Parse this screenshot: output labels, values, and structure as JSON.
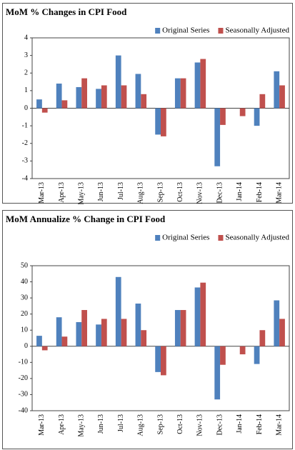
{
  "chart_data": [
    {
      "type": "bar",
      "title": "MoM % Changes in CPI Food",
      "categories": [
        "Mar-13",
        "Apr-13",
        "May-13",
        "Jun-13",
        "Jul-13",
        "Aug-13",
        "Sep-13",
        "Oct-13",
        "Nov-13",
        "Dec-13",
        "Jan-14",
        "Feb-14",
        "Mar-14"
      ],
      "series": [
        {
          "name": "Original Series",
          "color": "#4f81bd",
          "values": [
            0.5,
            1.4,
            1.2,
            1.1,
            3.0,
            1.95,
            -1.5,
            1.7,
            2.6,
            -3.3,
            0,
            -1.0,
            2.1
          ]
        },
        {
          "name": "Seasonally Adjusted",
          "color": "#c0504d",
          "values": [
            -0.25,
            0.45,
            1.7,
            1.3,
            1.3,
            0.8,
            -1.6,
            1.7,
            2.8,
            -0.95,
            -0.45,
            0.8,
            1.3
          ]
        }
      ],
      "ylim": [
        -4,
        4
      ],
      "yticks": [
        -4,
        -3,
        -2,
        -1,
        0,
        1,
        2,
        3,
        4
      ],
      "legend": "top-right"
    },
    {
      "type": "bar",
      "title": "MoM Annualize % Change in CPI Food",
      "categories": [
        "Mar-13",
        "Apr-13",
        "May-13",
        "Jun-13",
        "Jul-13",
        "Aug-13",
        "Sep-13",
        "Oct-13",
        "Nov-13",
        "Dec-13",
        "Jan-14",
        "Feb-14",
        "Mar-14"
      ],
      "series": [
        {
          "name": "Original Series",
          "color": "#4f81bd",
          "values": [
            6.5,
            18,
            15,
            13.5,
            43,
            26.5,
            -16,
            22.5,
            36.5,
            -33,
            0,
            -11,
            28.5
          ]
        },
        {
          "name": "Seasonally Adjusted",
          "color": "#c0504d",
          "values": [
            -2.5,
            6,
            22.5,
            17,
            17,
            10,
            -18,
            22.5,
            39.5,
            -11.5,
            -5,
            10,
            17
          ]
        }
      ],
      "ylim": [
        -40,
        50
      ],
      "yticks": [
        -40,
        -30,
        -20,
        -10,
        0,
        10,
        20,
        30,
        40,
        50
      ],
      "legend": "top-right"
    }
  ]
}
